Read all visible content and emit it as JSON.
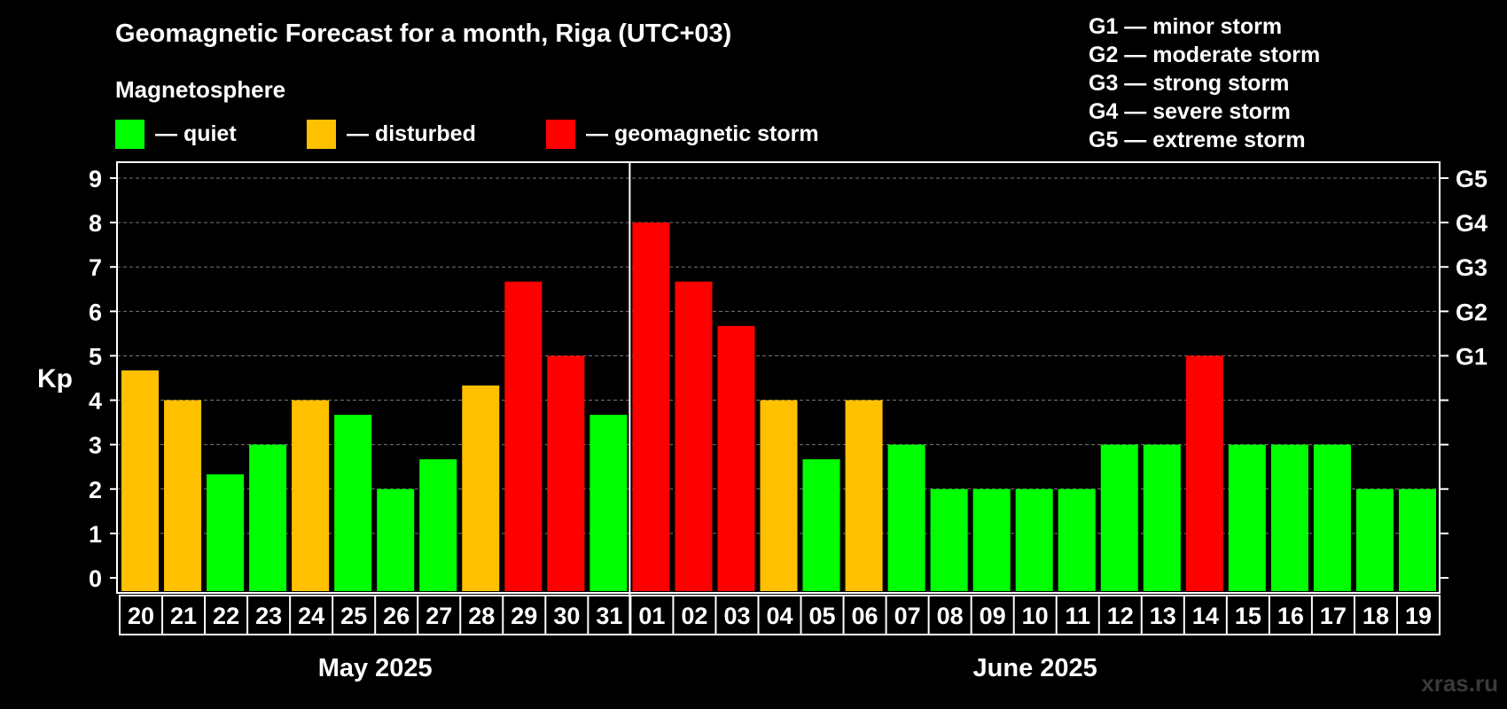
{
  "title": "Geomagnetic Forecast for a month, Riga (UTC+03)",
  "subheading": "Magnetosphere",
  "legend": [
    {
      "label": "— quiet",
      "color": "#00ff00"
    },
    {
      "label": "— disturbed",
      "color": "#ffc000"
    },
    {
      "label": "— geomagnetic storm",
      "color": "#ff0000"
    }
  ],
  "storm_scale": [
    "G1 — minor storm",
    "G2 — moderate storm",
    "G3 — strong storm",
    "G4 — severe storm",
    "G5 — extreme storm"
  ],
  "watermark": "xras.ru",
  "chart_data": {
    "type": "bar",
    "ylabel": "Kp",
    "ylim": [
      0,
      9
    ],
    "yticks": [
      0,
      1,
      2,
      3,
      4,
      5,
      6,
      7,
      8,
      9
    ],
    "right_ticks": [
      {
        "value": 5,
        "label": "G1"
      },
      {
        "value": 6,
        "label": "G2"
      },
      {
        "value": 7,
        "label": "G3"
      },
      {
        "value": 8,
        "label": "G4"
      },
      {
        "value": 9,
        "label": "G5"
      }
    ],
    "grid": true,
    "categories": [
      "20",
      "21",
      "22",
      "23",
      "24",
      "25",
      "26",
      "27",
      "28",
      "29",
      "30",
      "31",
      "01",
      "02",
      "03",
      "04",
      "05",
      "06",
      "07",
      "08",
      "09",
      "10",
      "11",
      "12",
      "13",
      "14",
      "15",
      "16",
      "17",
      "18",
      "19"
    ],
    "values": [
      4.67,
      4.0,
      2.33,
      3.0,
      4.0,
      3.67,
      2.0,
      2.67,
      4.33,
      6.67,
      5.0,
      3.67,
      8.0,
      6.67,
      5.67,
      4.0,
      2.67,
      4.0,
      3.0,
      2.0,
      2.0,
      2.0,
      2.0,
      3.0,
      3.0,
      5.0,
      3.0,
      3.0,
      3.0,
      2.0,
      2.0
    ],
    "colors": [
      "#ffc000",
      "#ffc000",
      "#00ff00",
      "#00ff00",
      "#ffc000",
      "#00ff00",
      "#00ff00",
      "#00ff00",
      "#ffc000",
      "#ff0000",
      "#ff0000",
      "#00ff00",
      "#ff0000",
      "#ff0000",
      "#ff0000",
      "#ffc000",
      "#00ff00",
      "#ffc000",
      "#00ff00",
      "#00ff00",
      "#00ff00",
      "#00ff00",
      "#00ff00",
      "#00ff00",
      "#00ff00",
      "#ff0000",
      "#00ff00",
      "#00ff00",
      "#00ff00",
      "#00ff00",
      "#00ff00"
    ],
    "months": [
      {
        "label": "May 2025",
        "start": 0,
        "count": 12
      },
      {
        "label": "June 2025",
        "start": 12,
        "count": 19
      }
    ]
  }
}
